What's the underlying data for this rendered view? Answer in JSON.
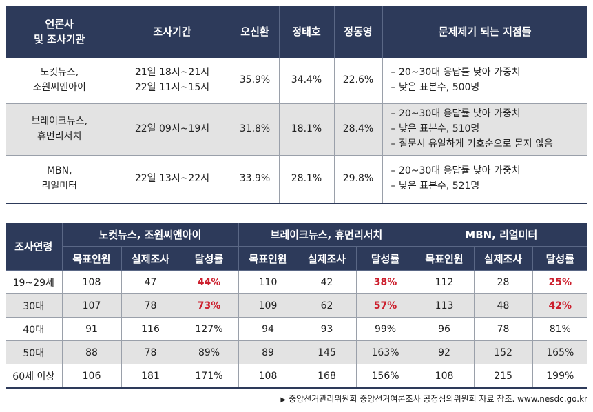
{
  "top_table": {
    "headers": [
      "언론사\n및 조사기관",
      "조사기간",
      "오신환",
      "정태호",
      "정동영",
      "문제제기 되는 지점들"
    ],
    "rows": [
      {
        "org": "노컷뉴스,\n조원씨앤아이",
        "period": "21일 18시~21시\n22일 11시~15시",
        "v1": "35.9%",
        "v2": "34.4%",
        "v3": "22.6%",
        "issues": [
          "– 20~30대 응답률 낮아 가중치",
          "– 낮은 표본수, 500명"
        ]
      },
      {
        "org": "브레이크뉴스,\n휴먼리서치",
        "period": "22일 09시~19시",
        "v1": "31.8%",
        "v2": "18.1%",
        "v3": "28.4%",
        "issues": [
          "– 20~30대 응답률 낮아 가중치",
          "– 낮은 표본수, 510명",
          "– 질문시 유일하게 기호순으로 묻지 않음"
        ]
      },
      {
        "org": "MBN,\n리얼미터",
        "period": "22일 13시~22시",
        "v1": "33.9%",
        "v2": "28.1%",
        "v3": "29.8%",
        "issues": [
          "– 20~30대 응답률 낮아 가중치",
          "– 낮은 표본수, 521명"
        ]
      }
    ]
  },
  "bottom_table": {
    "corner": "조사연령",
    "groups": [
      "노컷뉴스, 조원씨앤아이",
      "브레이크뉴스, 휴먼리서치",
      "MBN, 리얼미터"
    ],
    "sub_headers": [
      "목표인원",
      "실제조사",
      "달성률"
    ],
    "rows": [
      {
        "age": "19~29세",
        "cells": [
          "108",
          "47",
          "44%",
          "110",
          "42",
          "38%",
          "112",
          "28",
          "25%"
        ],
        "red": [
          2,
          5,
          8
        ]
      },
      {
        "age": "30대",
        "cells": [
          "107",
          "78",
          "73%",
          "109",
          "62",
          "57%",
          "113",
          "48",
          "42%"
        ],
        "red": [
          2,
          5,
          8
        ]
      },
      {
        "age": "40대",
        "cells": [
          "91",
          "116",
          "127%",
          "94",
          "93",
          "99%",
          "96",
          "78",
          "81%"
        ],
        "red": []
      },
      {
        "age": "50대",
        "cells": [
          "88",
          "78",
          "89%",
          "89",
          "145",
          "163%",
          "92",
          "152",
          "165%"
        ],
        "red": []
      },
      {
        "age": "60세 이상",
        "cells": [
          "106",
          "181",
          "171%",
          "108",
          "168",
          "156%",
          "108",
          "215",
          "199%"
        ],
        "red": []
      }
    ],
    "highlight_color": "#cc1f2d"
  },
  "footer": "중앙선거관리위원회 중앙선거여론조사 공정심의위원회 자료 참조. www.nesdc.go.kr"
}
